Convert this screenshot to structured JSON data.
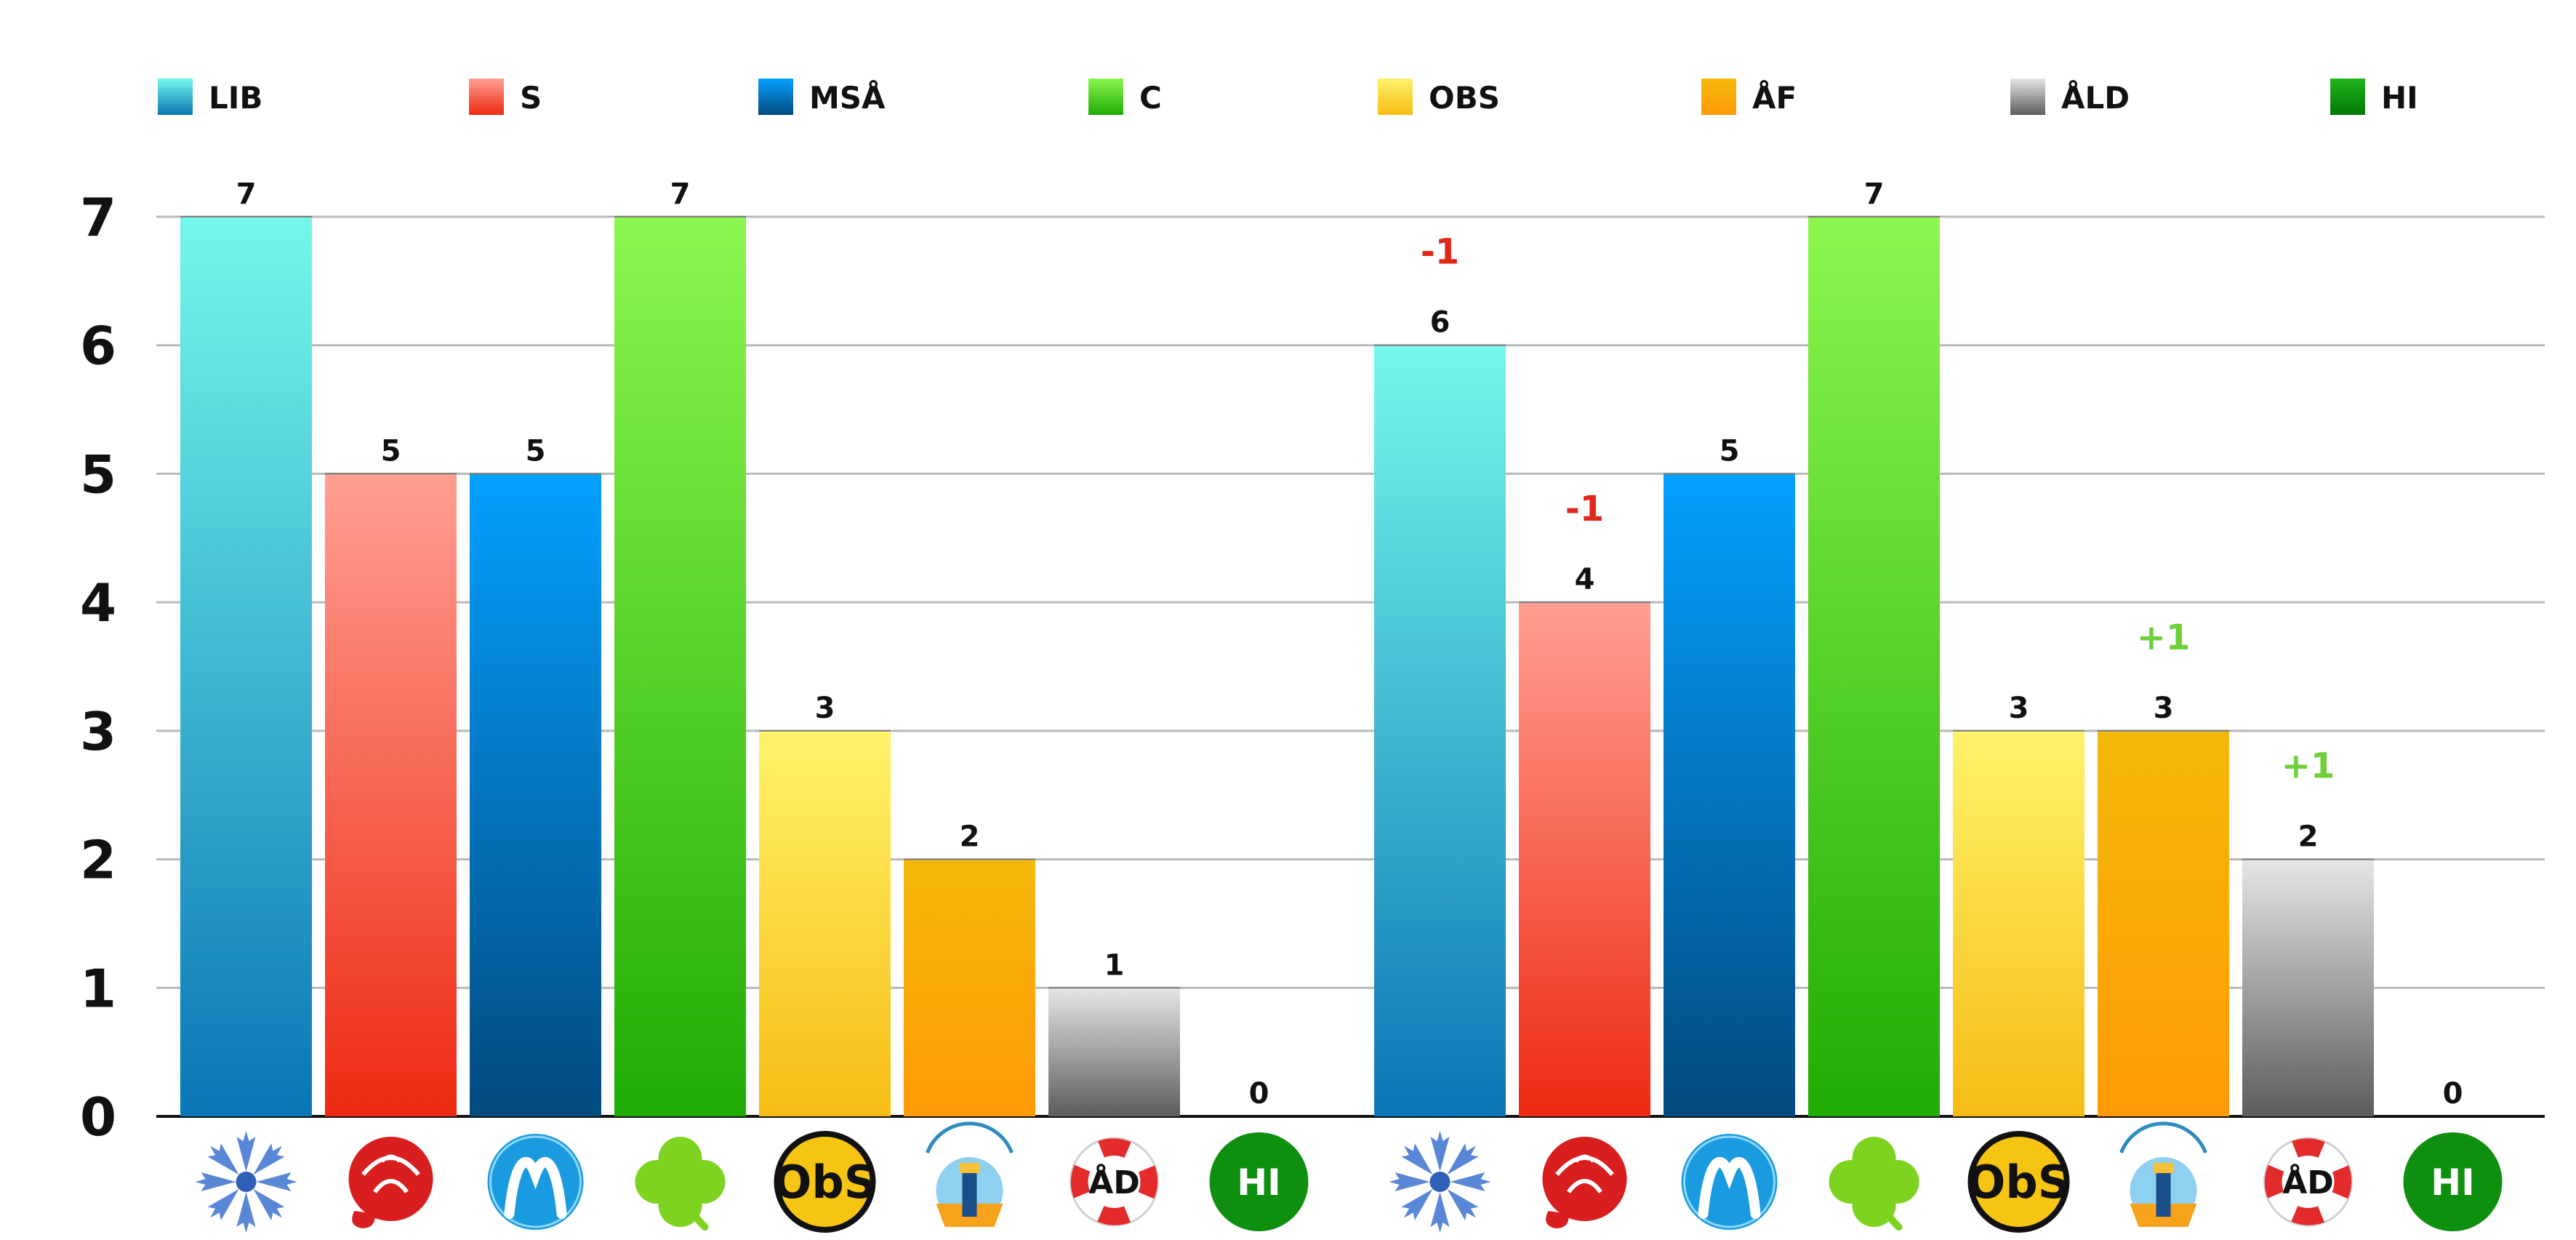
{
  "chart_data": {
    "type": "bar",
    "ylim": [
      0,
      7
    ],
    "yticks": [
      "0",
      "1",
      "2",
      "3",
      "4",
      "5",
      "6",
      "7"
    ],
    "grid": true,
    "legend_position": "top",
    "parties": [
      {
        "key": "LIB",
        "label": "LIB",
        "color": "#2aa7d6",
        "top": "#74f8ea",
        "bottom": "#0a76b6",
        "logo": "cornflower-icon"
      },
      {
        "key": "S",
        "label": "S",
        "color": "#f25050",
        "top": "#ff9e92",
        "bottom": "#ee2a12",
        "logo": "rose-icon"
      },
      {
        "key": "MSA",
        "label": "MSÅ",
        "color": "#0a7fd0",
        "top": "#04a0ff",
        "bottom": "#034a7e",
        "logo": "moderat-m-icon"
      },
      {
        "key": "C",
        "label": "C",
        "color": "#55d52a",
        "top": "#8bf64f",
        "bottom": "#20ac05",
        "logo": "clover-icon"
      },
      {
        "key": "OBS",
        "label": "OBS",
        "color": "#f8d23a",
        "top": "#fff36a",
        "bottom": "#f6bc14",
        "logo": "obs-icon"
      },
      {
        "key": "AF",
        "label": "ÅF",
        "color": "#f8a10a",
        "top": "#f4b80a",
        "bottom": "#ff9a06",
        "logo": "lighthouse-icon"
      },
      {
        "key": "ALD",
        "label": "ÅLD",
        "color": "#9a9a9a",
        "top": "#e6e6e6",
        "bottom": "#5c5c5c",
        "logo": "lifebuoy-icon"
      },
      {
        "key": "HI",
        "label": "HI",
        "color": "#0f9a10",
        "top": "#1fb51a",
        "bottom": "#067806",
        "logo": "hi-icon"
      }
    ],
    "groups": [
      {
        "values": [
          7,
          5,
          5,
          7,
          3,
          2,
          1,
          0
        ],
        "changes": [
          "",
          "",
          "",
          "",
          "",
          "",
          "",
          ""
        ]
      },
      {
        "values": [
          6,
          4,
          5,
          7,
          3,
          3,
          2,
          0
        ],
        "changes": [
          "-1",
          "-1",
          "",
          "",
          "",
          "+1",
          "+1",
          ""
        ]
      }
    ],
    "change_colors": {
      "negative": "#e02618",
      "positive": "#6fd03a"
    }
  }
}
